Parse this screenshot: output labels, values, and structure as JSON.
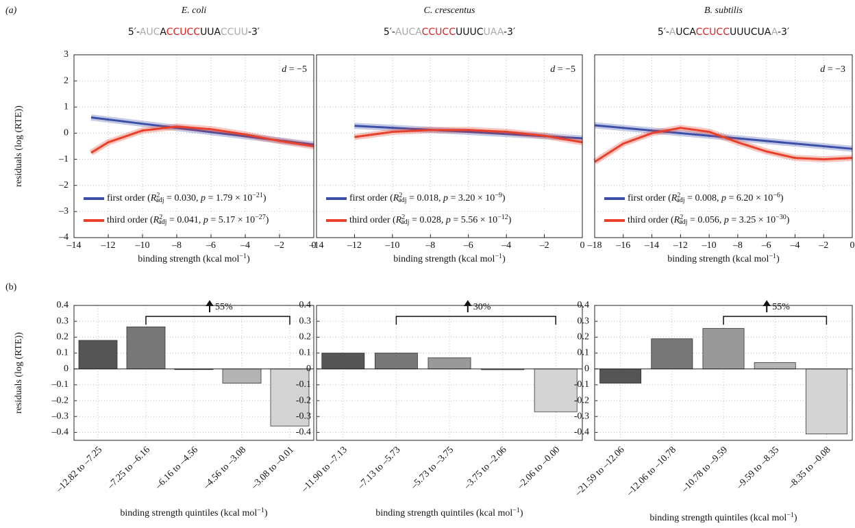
{
  "panel_labels": [
    "(a)",
    "(b)"
  ],
  "chart_data": [
    {
      "type": "line",
      "title": "E. coli",
      "sequence": [
        [
          "5′-",
          "#111"
        ],
        [
          "AUC",
          "#aaa"
        ],
        [
          "A",
          "#111"
        ],
        [
          "CCUCC",
          "#e02020"
        ],
        [
          "UUA",
          "#111"
        ],
        [
          "CCUU",
          "#aaa"
        ],
        [
          "-3′",
          "#111"
        ]
      ],
      "annotation": [
        [
          "d",
          "i"
        ],
        [
          " = −5",
          ""
        ]
      ],
      "ylabel": "residuals (log (RTE))",
      "xlabel": [
        [
          "binding strength (kcal mol",
          ""
        ],
        [
          "−1",
          "sup"
        ],
        [
          ")",
          ""
        ]
      ],
      "xlim": [
        -14,
        0
      ],
      "ylim": [
        -4,
        3
      ],
      "xticks": [
        {
          "value": -14,
          "label": "–14"
        },
        {
          "value": -12,
          "label": "–12"
        },
        {
          "value": -10,
          "label": "–10"
        },
        {
          "value": -8,
          "label": "–8"
        },
        {
          "value": -6,
          "label": "–6"
        },
        {
          "value": -4,
          "label": "–4"
        },
        {
          "value": -2,
          "label": "–2"
        },
        0
      ],
      "yticks": [
        3,
        2,
        1,
        0,
        {
          "value": -1,
          "label": "–1"
        },
        {
          "value": -2,
          "label": "–2"
        },
        {
          "value": -3,
          "label": "–3"
        },
        {
          "value": -4,
          "label": "–4"
        }
      ],
      "grid": true,
      "series": [
        {
          "name": "first order",
          "color": "#3b4fa8",
          "x": [
            -13,
            -10,
            -8,
            -6,
            -4,
            -2,
            0
          ],
          "values": [
            0.6,
            0.36,
            0.2,
            0.04,
            -0.12,
            -0.28,
            -0.44
          ],
          "stats": [
            [
              " (",
              ""
            ],
            [
              "R",
              "i"
            ],
            [
              "2",
              "sup"
            ],
            [
              "adj",
              "sub"
            ],
            [
              " = 0.030, ",
              ""
            ],
            [
              "p",
              "i"
            ],
            [
              " = 1.79 × 10",
              ""
            ],
            [
              "−21",
              "sup"
            ],
            [
              ")",
              ""
            ]
          ]
        },
        {
          "name": "third order",
          "color": "#e8402a",
          "x": [
            -13,
            -12,
            -10,
            -8,
            -6,
            -4,
            -2,
            0
          ],
          "values": [
            -0.75,
            -0.35,
            0.1,
            0.25,
            0.15,
            -0.05,
            -0.3,
            -0.5
          ],
          "stats": [
            [
              " (",
              ""
            ],
            [
              "R",
              "i"
            ],
            [
              "2",
              "sup"
            ],
            [
              "adj",
              "sub"
            ],
            [
              " = 0.041, ",
              ""
            ],
            [
              "p",
              "i"
            ],
            [
              " = 5.17 × 10",
              ""
            ],
            [
              "−27",
              "sup"
            ],
            [
              ")",
              ""
            ]
          ]
        }
      ]
    },
    {
      "type": "line",
      "title": "C. crescentus",
      "sequence": [
        [
          "5′-",
          "#111"
        ],
        [
          "AUCA",
          "#aaa"
        ],
        [
          "CCUCC",
          "#e02020"
        ],
        [
          "UUUC",
          "#111"
        ],
        [
          "UAA",
          "#aaa"
        ],
        [
          "-3′",
          "#111"
        ]
      ],
      "annotation": [
        [
          "d",
          "i"
        ],
        [
          " = −5",
          ""
        ]
      ],
      "xlabel": [
        [
          "binding strength (kcal mol",
          ""
        ],
        [
          "−1",
          "sup"
        ],
        [
          ")",
          ""
        ]
      ],
      "xlim": [
        -14,
        0
      ],
      "ylim": [
        -4,
        3
      ],
      "xticks": [
        {
          "value": -14,
          "label": "–14"
        },
        {
          "value": -12,
          "label": "–12"
        },
        {
          "value": -10,
          "label": "–10"
        },
        {
          "value": -8,
          "label": "–8"
        },
        {
          "value": -6,
          "label": "–6"
        },
        {
          "value": -4,
          "label": "–4"
        },
        {
          "value": -2,
          "label": "–2"
        },
        0
      ],
      "grid": true,
      "series": [
        {
          "name": "first order",
          "color": "#3b4fa8",
          "x": [
            -12,
            -6,
            0
          ],
          "values": [
            0.28,
            0.05,
            -0.2
          ],
          "stats": [
            [
              " (",
              ""
            ],
            [
              "R",
              "i"
            ],
            [
              "2",
              "sup"
            ],
            [
              "adj",
              "sub"
            ],
            [
              " = 0.018, ",
              ""
            ],
            [
              "p",
              "i"
            ],
            [
              " = 3.20 × 10",
              ""
            ],
            [
              "−9",
              "sup"
            ],
            [
              ")",
              ""
            ]
          ]
        },
        {
          "name": "third order",
          "color": "#e8402a",
          "x": [
            -12,
            -10,
            -8,
            -6,
            -4,
            -2,
            0
          ],
          "values": [
            -0.15,
            0.05,
            0.12,
            0.12,
            0.05,
            -0.1,
            -0.35
          ],
          "stats": [
            [
              " (",
              ""
            ],
            [
              "R",
              "i"
            ],
            [
              "2",
              "sup"
            ],
            [
              "adj",
              "sub"
            ],
            [
              " = 0.028, ",
              ""
            ],
            [
              "p",
              "i"
            ],
            [
              " = 5.56 × 10",
              ""
            ],
            [
              "−12",
              "sup"
            ],
            [
              ")",
              ""
            ]
          ]
        }
      ]
    },
    {
      "type": "line",
      "title": "B. subtilis",
      "sequence": [
        [
          "5′-",
          "#111"
        ],
        [
          "A",
          "#aaa"
        ],
        [
          "UCA",
          "#111"
        ],
        [
          "CCUCC",
          "#e02020"
        ],
        [
          "UUUCUA",
          "#111"
        ],
        [
          "A",
          "#aaa"
        ],
        [
          "-3′",
          "#111"
        ]
      ],
      "annotation": [
        [
          "d",
          "i"
        ],
        [
          " = −3",
          ""
        ]
      ],
      "xlabel": [
        [
          "binding strength (kcal mol",
          ""
        ],
        [
          "−1",
          "sup"
        ],
        [
          ")",
          ""
        ]
      ],
      "xlim": [
        -18,
        0
      ],
      "ylim": [
        -4,
        3
      ],
      "xticks": [
        {
          "value": -18,
          "label": "–18"
        },
        {
          "value": -16,
          "label": "–16"
        },
        {
          "value": -14,
          "label": "–14"
        },
        {
          "value": -12,
          "label": "–12"
        },
        {
          "value": -10,
          "label": "–10"
        },
        {
          "value": -8,
          "label": "–8"
        },
        {
          "value": -6,
          "label": "–6"
        },
        {
          "value": -4,
          "label": "–4"
        },
        {
          "value": -2,
          "label": "–2"
        },
        0
      ],
      "grid": true,
      "series": [
        {
          "name": "first order",
          "color": "#3b4fa8",
          "x": [
            -18,
            -9,
            0
          ],
          "values": [
            0.3,
            -0.15,
            -0.6
          ],
          "stats": [
            [
              " (",
              ""
            ],
            [
              "R",
              "i"
            ],
            [
              "2",
              "sup"
            ],
            [
              "adj",
              "sub"
            ],
            [
              " = 0.008, ",
              ""
            ],
            [
              "p",
              "i"
            ],
            [
              " = 6.20 × 10",
              ""
            ],
            [
              "−6",
              "sup"
            ],
            [
              ")",
              ""
            ]
          ]
        },
        {
          "name": "third order",
          "color": "#e8402a",
          "x": [
            -18,
            -16,
            -14,
            -12,
            -10,
            -8,
            -6,
            -4,
            -2,
            0
          ],
          "values": [
            -1.1,
            -0.4,
            0.0,
            0.2,
            0.05,
            -0.35,
            -0.7,
            -0.95,
            -1.0,
            -0.95
          ],
          "stats": [
            [
              " (",
              ""
            ],
            [
              "R",
              "i"
            ],
            [
              "2",
              "sup"
            ],
            [
              "adj",
              "sub"
            ],
            [
              " = 0.056, ",
              ""
            ],
            [
              "p",
              "i"
            ],
            [
              " = 3.25 × 10",
              ""
            ],
            [
              "−30",
              "sup"
            ],
            [
              ")",
              ""
            ]
          ]
        }
      ]
    },
    {
      "type": "bar",
      "ylabel": "residuals (log (RTE))",
      "xlabel": [
        [
          "binding strength quintiles (kcal mol",
          ""
        ],
        [
          "−1",
          "sup"
        ],
        [
          ")",
          ""
        ]
      ],
      "categories": [
        "–12.82 to –7.25",
        "–7.25 to –6.16",
        "–6.16 to –4.56",
        "–4.56 to –3.08",
        "–3.08 to –0.01"
      ],
      "values": [
        0.18,
        0.265,
        -0.003,
        -0.09,
        -0.36
      ],
      "colors": [
        "#555555",
        "#777777",
        "#999999",
        "#b3b3b3",
        "#d4d4d4"
      ],
      "ylim": [
        -0.45,
        0.4
      ],
      "yticks": [
        0.4,
        0.3,
        0.2,
        0.1,
        0,
        {
          "value": -0.1,
          "label": "–0.1"
        },
        {
          "value": -0.2,
          "label": "–0.2"
        },
        {
          "value": -0.3,
          "label": "–0.3"
        },
        {
          "value": -0.4,
          "label": "–0.4"
        }
      ],
      "grid": true,
      "bracket": {
        "from": 1,
        "to": 4,
        "label": "55%"
      }
    },
    {
      "type": "bar",
      "xlabel": [
        [
          "binding strength quintiles (kcal mol",
          ""
        ],
        [
          "−1",
          "sup"
        ],
        [
          ")",
          ""
        ]
      ],
      "categories": [
        "–11.90 to –7.13",
        "–7.13 to –5.73",
        "–5.73 to –3.75",
        "–3.75 to –2.06",
        "–2.06 to –0.00"
      ],
      "values": [
        0.1,
        0.1,
        0.07,
        -0.005,
        -0.27
      ],
      "colors": [
        "#555555",
        "#777777",
        "#999999",
        "#b3b3b3",
        "#d4d4d4"
      ],
      "ylim": [
        -0.45,
        0.4
      ],
      "yticks": [
        0.4,
        0.3,
        0.2,
        0.1,
        0,
        -0.1,
        -0.2,
        -0.3,
        -0.4
      ],
      "grid": true,
      "bracket": {
        "from": 1,
        "to": 4,
        "label": "30%"
      }
    },
    {
      "type": "bar",
      "xlabel": [
        [
          "binding strength quintiles (kcal mol",
          ""
        ],
        [
          "−1",
          "sup"
        ],
        [
          ")",
          ""
        ]
      ],
      "categories": [
        "–21.59 to –12.06",
        "–12.06 to –10.78",
        "–10.78 to –9.59",
        "–9.59 to –8.35",
        "–8.35 to –0.08"
      ],
      "values": [
        -0.09,
        0.19,
        0.255,
        0.04,
        -0.41
      ],
      "colors": [
        "#555555",
        "#777777",
        "#999999",
        "#b3b3b3",
        "#d4d4d4"
      ],
      "ylim": [
        -0.45,
        0.4
      ],
      "yticks": [
        0.4,
        0.3,
        0.2,
        0.1,
        0,
        -0.1,
        -0.2,
        -0.3,
        -0.4
      ],
      "grid": true,
      "bracket": {
        "from": 2,
        "to": 4,
        "label": "55%"
      }
    }
  ]
}
